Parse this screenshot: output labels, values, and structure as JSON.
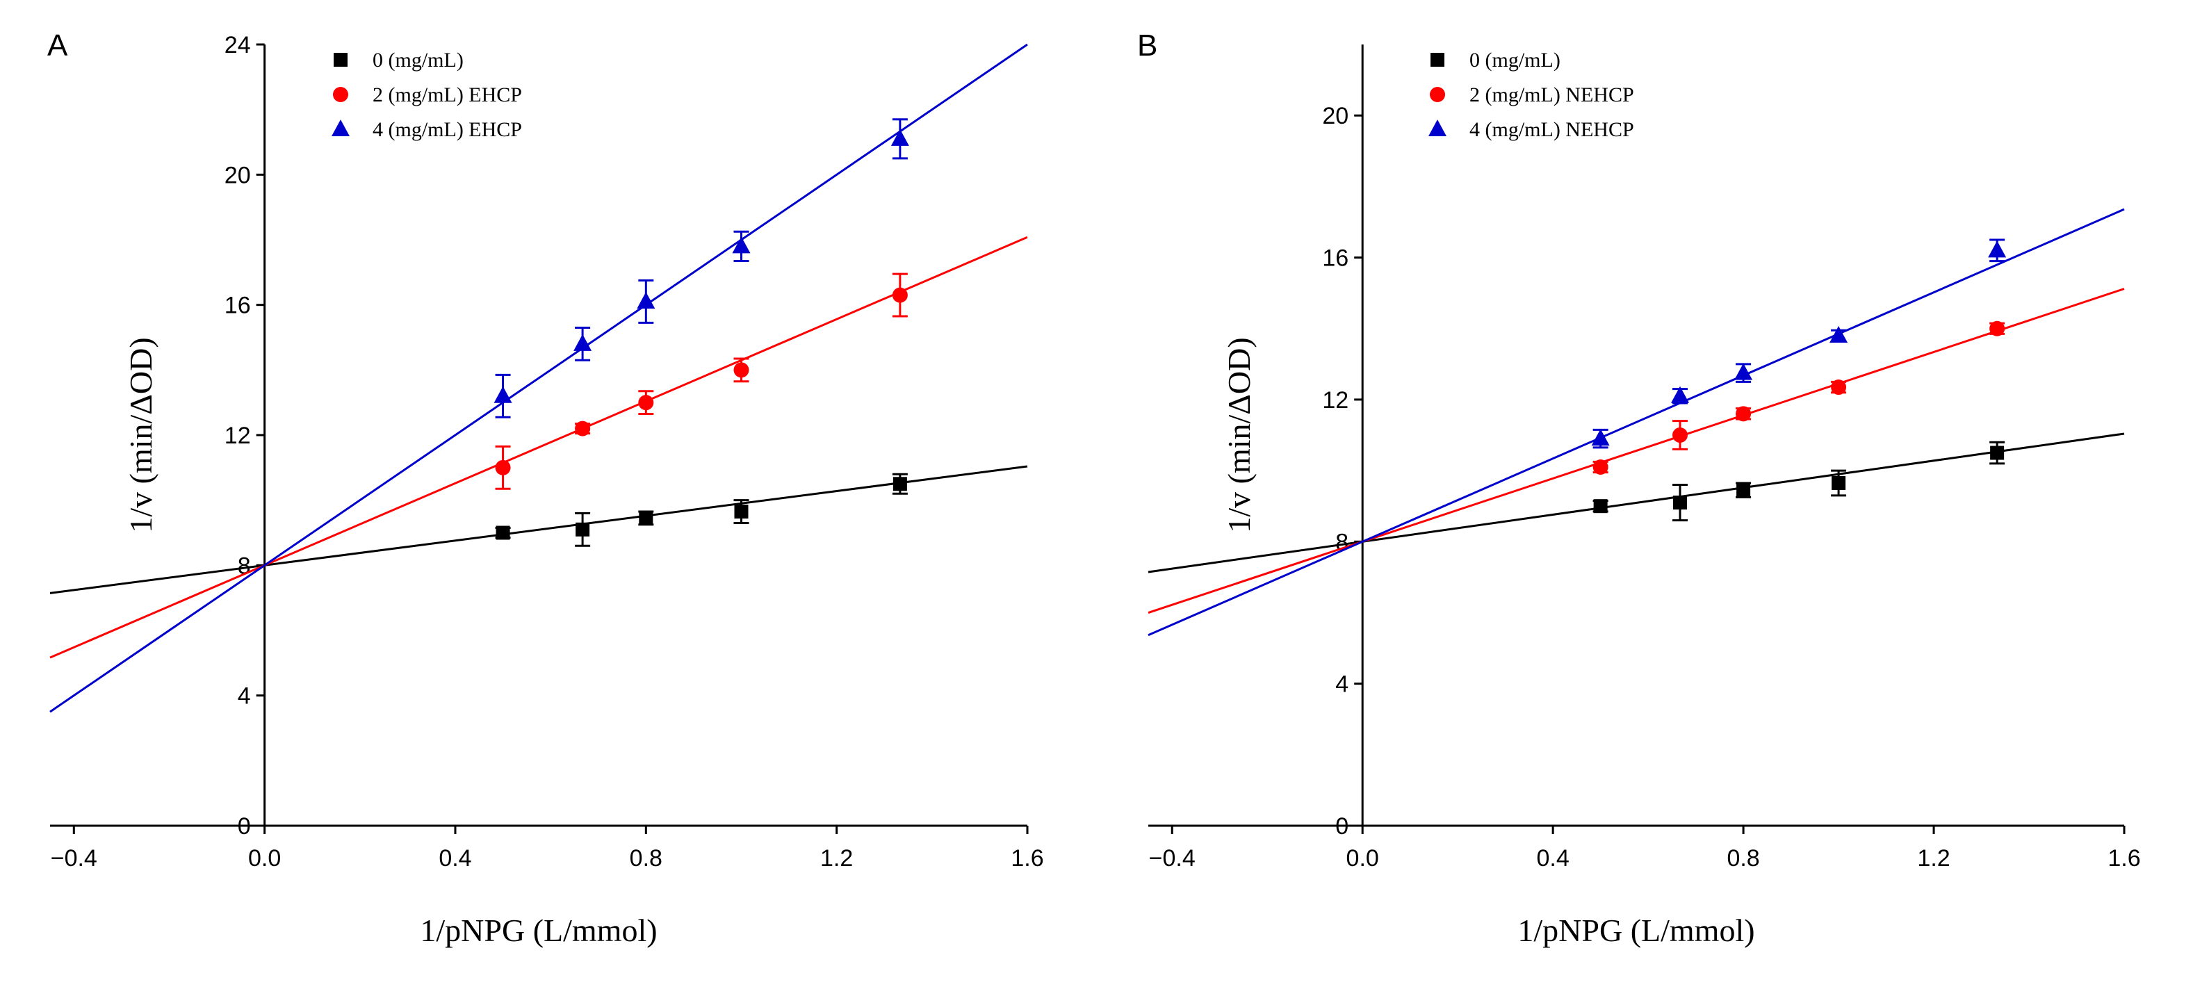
{
  "chart_data": [
    {
      "type": "scatter",
      "panel_label": "A",
      "title": "",
      "xlabel": "1/pNPG (L/mmol)",
      "ylabel": "1/v (min/ΔOD)",
      "xlim": [
        -0.45,
        1.6
      ],
      "ylim": [
        0,
        24
      ],
      "xticks": [
        -0.4,
        0.0,
        0.4,
        0.8,
        1.2,
        1.6
      ],
      "yticks": [
        0,
        4,
        8,
        12,
        16,
        20,
        24
      ],
      "xtick_labels": [
        "−0.4",
        "0.0",
        "0.4",
        "0.8",
        "1.2",
        "1.6"
      ],
      "ytick_labels": [
        "0",
        "4",
        "8",
        "12",
        "16",
        "20",
        "24"
      ],
      "legend_position": "top-left",
      "series": [
        {
          "name": "0 (mg/mL)",
          "color": "#000000",
          "marker": "square",
          "x": [
            0.5,
            0.667,
            0.8,
            1.0,
            1.333
          ],
          "y": [
            9.0,
            9.1,
            9.45,
            9.65,
            10.5
          ],
          "yerr": [
            0.15,
            0.5,
            0.2,
            0.35,
            0.3
          ],
          "fit": {
            "slope": 1.9,
            "intercept": 8.0
          }
        },
        {
          "name": "2 (mg/mL) EHCP",
          "color": "#ff0000",
          "marker": "circle",
          "x": [
            0.5,
            0.667,
            0.8,
            1.0,
            1.333
          ],
          "y": [
            11.0,
            12.2,
            13.0,
            14.0,
            16.3
          ],
          "yerr": [
            0.65,
            0.15,
            0.35,
            0.35,
            0.65
          ],
          "fit": {
            "slope": 6.3,
            "intercept": 8.0
          }
        },
        {
          "name": "4 (mg/mL) EHCP",
          "color": "#0000cc",
          "marker": "triangle",
          "x": [
            0.5,
            0.667,
            0.8,
            1.0,
            1.333
          ],
          "y": [
            13.2,
            14.8,
            16.1,
            17.8,
            21.1
          ],
          "yerr": [
            0.65,
            0.5,
            0.65,
            0.45,
            0.6
          ],
          "fit": {
            "slope": 10.0,
            "intercept": 8.0
          }
        }
      ]
    },
    {
      "type": "scatter",
      "panel_label": "B",
      "title": "",
      "xlabel": "1/pNPG (L/mmol)",
      "ylabel": "1/v (min/ΔOD)",
      "xlim": [
        -0.45,
        1.6
      ],
      "ylim": [
        0,
        22
      ],
      "xticks": [
        -0.4,
        0.0,
        0.4,
        0.8,
        1.2,
        1.6
      ],
      "yticks": [
        0,
        4,
        8,
        12,
        16,
        20
      ],
      "xtick_labels": [
        "−0.4",
        "0.0",
        "0.4",
        "0.8",
        "1.2",
        "1.6"
      ],
      "ytick_labels": [
        "0",
        "4",
        "8",
        "12",
        "16",
        "20"
      ],
      "legend_position": "top-left",
      "series": [
        {
          "name": "0 (mg/mL)",
          "color": "#000000",
          "marker": "square",
          "x": [
            0.5,
            0.667,
            0.8,
            1.0,
            1.333
          ],
          "y": [
            9.0,
            9.1,
            9.45,
            9.65,
            10.5
          ],
          "yerr": [
            0.15,
            0.5,
            0.2,
            0.35,
            0.3
          ],
          "fit": {
            "slope": 1.9,
            "intercept": 8.0
          }
        },
        {
          "name": "2 (mg/mL) NEHCP",
          "color": "#ff0000",
          "marker": "circle",
          "x": [
            0.5,
            0.667,
            0.8,
            1.0,
            1.333
          ],
          "y": [
            10.1,
            11.0,
            11.6,
            12.35,
            14.0
          ],
          "yerr": [
            0.15,
            0.4,
            0.15,
            0.15,
            0.15
          ],
          "fit": {
            "slope": 4.45,
            "intercept": 8.0
          }
        },
        {
          "name": "4 (mg/mL) NEHCP",
          "color": "#0000cc",
          "marker": "triangle",
          "x": [
            0.5,
            0.667,
            0.8,
            1.0,
            1.333
          ],
          "y": [
            10.9,
            12.1,
            12.75,
            13.8,
            16.2
          ],
          "yerr": [
            0.25,
            0.2,
            0.25,
            0.15,
            0.3
          ],
          "fit": {
            "slope": 5.85,
            "intercept": 8.0
          }
        }
      ]
    }
  ]
}
